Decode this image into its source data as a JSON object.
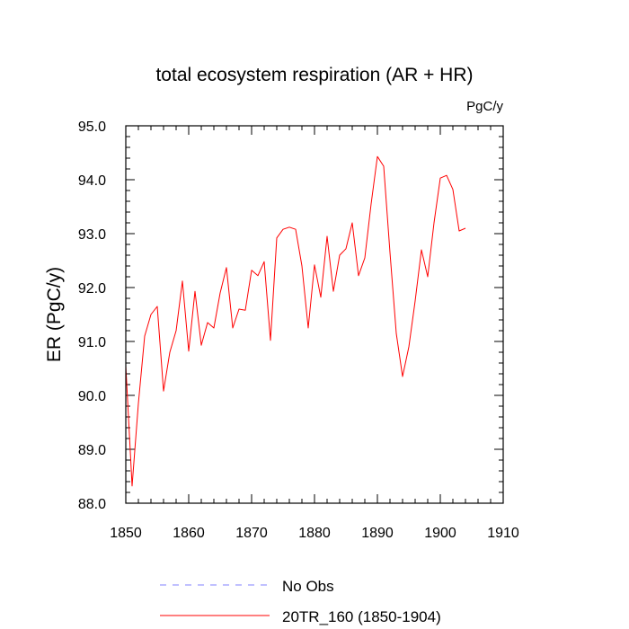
{
  "chart_data": {
    "type": "line",
    "title": "total ecosystem respiration (AR + HR)",
    "units": "PgC/y",
    "xlabel": "",
    "ylabel": "ER  (PgC/y)",
    "xlim": [
      1850,
      1910
    ],
    "ylim": [
      88.0,
      95.0
    ],
    "x_ticks": [
      1850,
      1860,
      1870,
      1880,
      1890,
      1900,
      1910
    ],
    "y_ticks": [
      88.0,
      89.0,
      90.0,
      91.0,
      92.0,
      93.0,
      94.0,
      95.0
    ],
    "x_tick_labels": [
      "1850",
      "1860",
      "1870",
      "1880",
      "1890",
      "1900",
      "1910"
    ],
    "y_tick_labels": [
      "88.0",
      "89.0",
      "90.0",
      "91.0",
      "92.0",
      "93.0",
      "94.0",
      "95.0"
    ],
    "grid": false,
    "legend_position": "bottom",
    "series": [
      {
        "name": "No Obs",
        "color": "#8080ff",
        "style": "dashed",
        "x": [],
        "values": []
      },
      {
        "name": "20TR_160 (1850-1904)",
        "color": "#ff0000",
        "style": "solid",
        "x": [
          1850,
          1851,
          1852,
          1853,
          1854,
          1855,
          1856,
          1857,
          1858,
          1859,
          1860,
          1861,
          1862,
          1863,
          1864,
          1865,
          1866,
          1867,
          1868,
          1869,
          1870,
          1871,
          1872,
          1873,
          1874,
          1875,
          1876,
          1877,
          1878,
          1879,
          1880,
          1881,
          1882,
          1883,
          1884,
          1885,
          1886,
          1887,
          1888,
          1889,
          1890,
          1891,
          1892,
          1893,
          1894,
          1895,
          1896,
          1897,
          1898,
          1899,
          1900,
          1901,
          1902,
          1903,
          1904
        ],
        "values": [
          90.55,
          88.32,
          89.85,
          91.1,
          91.5,
          91.65,
          90.08,
          90.8,
          91.2,
          92.12,
          90.82,
          91.93,
          90.93,
          91.35,
          91.25,
          91.9,
          92.37,
          91.25,
          91.6,
          91.58,
          92.32,
          92.22,
          92.48,
          91.02,
          92.92,
          93.08,
          93.12,
          93.08,
          92.4,
          91.25,
          92.42,
          91.82,
          92.95,
          91.93,
          92.6,
          92.72,
          93.2,
          92.22,
          92.55,
          93.55,
          94.43,
          94.25,
          92.65,
          91.15,
          90.35,
          90.9,
          91.75,
          92.7,
          92.2,
          93.2,
          94.03,
          94.08,
          93.82,
          93.05,
          93.1
        ]
      }
    ]
  }
}
